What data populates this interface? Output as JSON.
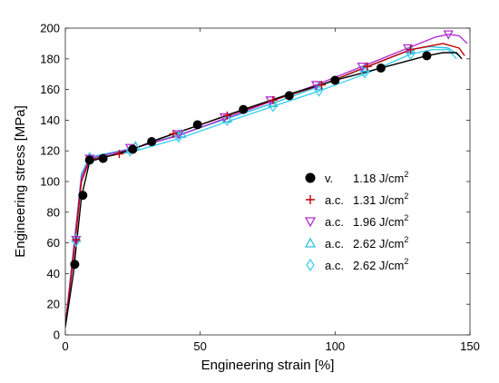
{
  "chart_data": {
    "type": "line",
    "xlabel": "Engineering strain [%]",
    "ylabel": "Engineering stress [MPa]",
    "xlim": [
      0,
      150
    ],
    "ylim": [
      0,
      200
    ],
    "xticks": [
      0,
      50,
      100,
      150
    ],
    "yticks": [
      0,
      20,
      40,
      60,
      80,
      100,
      120,
      140,
      160,
      180,
      200
    ],
    "grid": false,
    "legend_position": "center-right",
    "series": [
      {
        "name": "v.",
        "energy": "1.18 J/cm²",
        "color": "#000000",
        "marker": "filled-circle",
        "curve": [
          [
            0,
            5
          ],
          [
            3,
            40
          ],
          [
            6,
            90
          ],
          [
            9,
            113
          ],
          [
            15,
            116
          ],
          [
            25,
            121
          ],
          [
            35,
            128
          ],
          [
            50,
            137
          ],
          [
            66,
            147
          ],
          [
            83,
            157
          ],
          [
            100,
            166
          ],
          [
            117,
            174
          ],
          [
            134,
            182
          ],
          [
            140,
            184
          ],
          [
            145,
            184
          ],
          [
            147,
            180
          ]
        ],
        "markers": [
          [
            3.5,
            46
          ],
          [
            6.5,
            91
          ],
          [
            9,
            114
          ],
          [
            14,
            115
          ],
          [
            25,
            121
          ],
          [
            32,
            126
          ],
          [
            49,
            137
          ],
          [
            66,
            147
          ],
          [
            83,
            156
          ],
          [
            100,
            166
          ],
          [
            117,
            174
          ],
          [
            134,
            182
          ]
        ]
      },
      {
        "name": "a.c.",
        "energy": "1.31 J/cm²",
        "color": "#c00000",
        "marker": "plus",
        "curve": [
          [
            0,
            6
          ],
          [
            3,
            50
          ],
          [
            6,
            100
          ],
          [
            9,
            114
          ],
          [
            20,
            118
          ],
          [
            40,
            131
          ],
          [
            60,
            143
          ],
          [
            77,
            153
          ],
          [
            95,
            163
          ],
          [
            112,
            175
          ],
          [
            128,
            186
          ],
          [
            140,
            190
          ],
          [
            146,
            187
          ],
          [
            148,
            182
          ]
        ],
        "markers": [
          [
            4,
            62
          ],
          [
            9,
            114
          ],
          [
            20,
            118
          ],
          [
            40,
            131
          ],
          [
            60,
            143
          ],
          [
            77,
            153
          ],
          [
            95,
            163
          ],
          [
            112,
            175
          ],
          [
            128,
            186
          ]
        ]
      },
      {
        "name": "a.c.",
        "energy": "1.96 J/cm²",
        "color": "#b030d0",
        "marker": "triangle-down",
        "curve": [
          [
            0,
            6
          ],
          [
            3,
            55
          ],
          [
            6,
            103
          ],
          [
            9,
            115
          ],
          [
            24,
            121
          ],
          [
            42,
            130
          ],
          [
            59,
            141
          ],
          [
            76,
            152
          ],
          [
            93,
            163
          ],
          [
            110,
            175
          ],
          [
            127,
            187
          ],
          [
            137,
            194
          ],
          [
            142,
            196
          ],
          [
            146,
            195
          ],
          [
            149,
            190
          ]
        ],
        "markers": [
          [
            4,
            62
          ],
          [
            9,
            115
          ],
          [
            24,
            122
          ],
          [
            42,
            131
          ],
          [
            59,
            142
          ],
          [
            76,
            153
          ],
          [
            93,
            163
          ],
          [
            110,
            175
          ],
          [
            127,
            187
          ],
          [
            142,
            196
          ]
        ]
      },
      {
        "name": "a.c.",
        "energy": "2.62 J/cm²",
        "color": "#30c0e0",
        "marker": "triangle-up",
        "curve": [
          [
            0,
            6
          ],
          [
            3,
            55
          ],
          [
            6,
            105
          ],
          [
            9,
            116
          ],
          [
            26,
            122
          ],
          [
            43,
            131
          ],
          [
            60,
            141
          ],
          [
            77,
            151
          ],
          [
            94,
            162
          ],
          [
            111,
            174
          ],
          [
            128,
            186
          ],
          [
            135,
            188
          ],
          [
            142,
            187
          ],
          [
            146,
            182
          ]
        ],
        "markers": [
          [
            4,
            63
          ],
          [
            9,
            116
          ],
          [
            26,
            123
          ],
          [
            43,
            131
          ],
          [
            60,
            141
          ],
          [
            77,
            151
          ],
          [
            94,
            162
          ],
          [
            111,
            174
          ],
          [
            128,
            186
          ]
        ]
      },
      {
        "name": "a.c.",
        "energy": "2.62 J/cm²",
        "color": "#40d0f0",
        "marker": "diamond",
        "curve": [
          [
            0,
            6
          ],
          [
            3,
            50
          ],
          [
            6,
            102
          ],
          [
            9,
            115
          ],
          [
            24,
            119
          ],
          [
            42,
            128
          ],
          [
            60,
            139
          ],
          [
            77,
            149
          ],
          [
            94,
            159
          ],
          [
            111,
            170
          ],
          [
            128,
            183
          ],
          [
            136,
            186
          ],
          [
            142,
            186
          ],
          [
            145,
            180
          ]
        ],
        "markers": [
          [
            4,
            61
          ],
          [
            9,
            114
          ],
          [
            24,
            120
          ],
          [
            42,
            129
          ],
          [
            60,
            140
          ],
          [
            77,
            149
          ],
          [
            94,
            159
          ],
          [
            111,
            171
          ],
          [
            128,
            183
          ]
        ]
      }
    ]
  }
}
